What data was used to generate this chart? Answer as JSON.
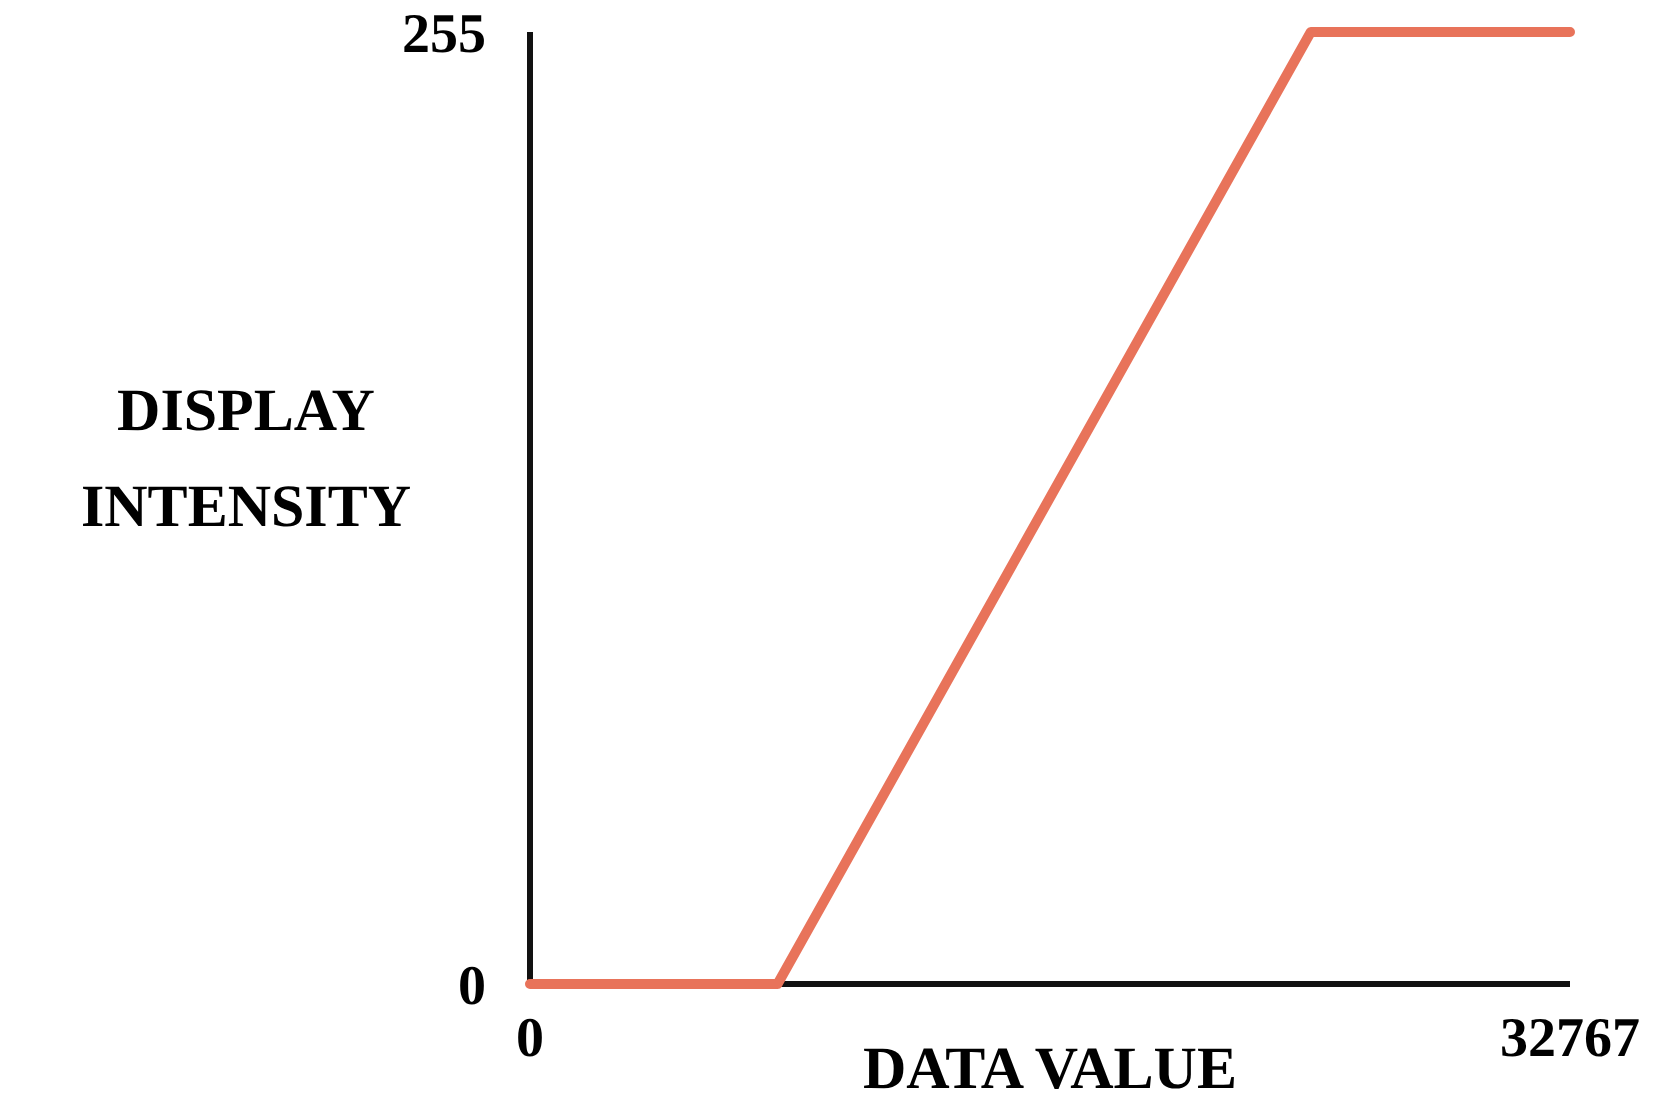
{
  "chart_data": {
    "type": "line",
    "xlabel": "DATA VALUE",
    "ylabel": "DISPLAY\nINTENSITY",
    "x": [
      0,
      7800,
      24600,
      32767
    ],
    "series": [
      {
        "color": "#e8735a",
        "values": [
          0,
          0,
          255,
          255
        ]
      }
    ],
    "xlim": [
      0,
      32767
    ],
    "xticks": [
      0,
      32767
    ],
    "ylim": [
      0,
      255
    ],
    "yticks": [
      0,
      255
    ],
    "grid": false,
    "marker": "none",
    "line_style": "solid"
  }
}
